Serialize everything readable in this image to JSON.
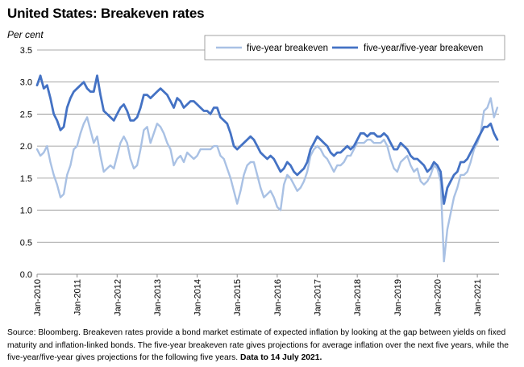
{
  "chart_data": {
    "type": "line",
    "title": "United States: Breakeven rates",
    "ylabel": "Per cent",
    "ylim": [
      0.0,
      3.5
    ],
    "yticks": [
      "0.0",
      "0.5",
      "1.0",
      "1.5",
      "2.0",
      "2.5",
      "3.0",
      "3.5"
    ],
    "xticks": [
      "Jan-2010",
      "Jan-2011",
      "Jan-2012",
      "Jan-2013",
      "Jan-2014",
      "Jan-2015",
      "Jan-2016",
      "Jan-2017",
      "Jan-2018",
      "Jan-2019",
      "Jan-2020",
      "Jan-2021"
    ],
    "xrange": [
      "2010-01",
      "2021-07"
    ],
    "grid": "horizontal",
    "legend_position": "top-right",
    "series": [
      {
        "name": "five-year breakeven",
        "color": "#a9c1e4",
        "points": [
          [
            "2010-01",
            1.95
          ],
          [
            "2010-02",
            1.85
          ],
          [
            "2010-03",
            1.9
          ],
          [
            "2010-04",
            2.0
          ],
          [
            "2010-05",
            1.75
          ],
          [
            "2010-06",
            1.55
          ],
          [
            "2010-07",
            1.4
          ],
          [
            "2010-08",
            1.2
          ],
          [
            "2010-09",
            1.25
          ],
          [
            "2010-10",
            1.55
          ],
          [
            "2010-11",
            1.7
          ],
          [
            "2010-12",
            1.95
          ],
          [
            "2011-01",
            2.0
          ],
          [
            "2011-02",
            2.2
          ],
          [
            "2011-03",
            2.35
          ],
          [
            "2011-04",
            2.45
          ],
          [
            "2011-05",
            2.25
          ],
          [
            "2011-06",
            2.05
          ],
          [
            "2011-07",
            2.15
          ],
          [
            "2011-08",
            1.85
          ],
          [
            "2011-09",
            1.6
          ],
          [
            "2011-10",
            1.65
          ],
          [
            "2011-11",
            1.7
          ],
          [
            "2011-12",
            1.65
          ],
          [
            "2012-01",
            1.85
          ],
          [
            "2012-02",
            2.05
          ],
          [
            "2012-03",
            2.15
          ],
          [
            "2012-04",
            2.05
          ],
          [
            "2012-05",
            1.8
          ],
          [
            "2012-06",
            1.65
          ],
          [
            "2012-07",
            1.7
          ],
          [
            "2012-08",
            1.95
          ],
          [
            "2012-09",
            2.25
          ],
          [
            "2012-10",
            2.3
          ],
          [
            "2012-11",
            2.05
          ],
          [
            "2012-12",
            2.2
          ],
          [
            "2013-01",
            2.35
          ],
          [
            "2013-02",
            2.3
          ],
          [
            "2013-03",
            2.2
          ],
          [
            "2013-04",
            2.05
          ],
          [
            "2013-05",
            1.95
          ],
          [
            "2013-06",
            1.7
          ],
          [
            "2013-07",
            1.8
          ],
          [
            "2013-08",
            1.85
          ],
          [
            "2013-09",
            1.75
          ],
          [
            "2013-10",
            1.9
          ],
          [
            "2013-11",
            1.85
          ],
          [
            "2013-12",
            1.8
          ],
          [
            "2014-01",
            1.85
          ],
          [
            "2014-02",
            1.95
          ],
          [
            "2014-03",
            1.95
          ],
          [
            "2014-04",
            1.95
          ],
          [
            "2014-05",
            1.95
          ],
          [
            "2014-06",
            2.0
          ],
          [
            "2014-07",
            2.0
          ],
          [
            "2014-08",
            1.85
          ],
          [
            "2014-09",
            1.8
          ],
          [
            "2014-10",
            1.65
          ],
          [
            "2014-11",
            1.5
          ],
          [
            "2014-12",
            1.3
          ],
          [
            "2015-01",
            1.1
          ],
          [
            "2015-02",
            1.3
          ],
          [
            "2015-03",
            1.55
          ],
          [
            "2015-04",
            1.7
          ],
          [
            "2015-05",
            1.75
          ],
          [
            "2015-06",
            1.75
          ],
          [
            "2015-07",
            1.55
          ],
          [
            "2015-08",
            1.35
          ],
          [
            "2015-09",
            1.2
          ],
          [
            "2015-10",
            1.25
          ],
          [
            "2015-11",
            1.3
          ],
          [
            "2015-12",
            1.2
          ],
          [
            "2016-01",
            1.05
          ],
          [
            "2016-02",
            1.0
          ],
          [
            "2016-03",
            1.4
          ],
          [
            "2016-04",
            1.55
          ],
          [
            "2016-05",
            1.5
          ],
          [
            "2016-06",
            1.4
          ],
          [
            "2016-07",
            1.3
          ],
          [
            "2016-08",
            1.35
          ],
          [
            "2016-09",
            1.45
          ],
          [
            "2016-10",
            1.6
          ],
          [
            "2016-11",
            1.85
          ],
          [
            "2016-12",
            1.95
          ],
          [
            "2017-01",
            2.0
          ],
          [
            "2017-02",
            1.95
          ],
          [
            "2017-03",
            1.85
          ],
          [
            "2017-04",
            1.8
          ],
          [
            "2017-05",
            1.7
          ],
          [
            "2017-06",
            1.6
          ],
          [
            "2017-07",
            1.7
          ],
          [
            "2017-08",
            1.7
          ],
          [
            "2017-09",
            1.75
          ],
          [
            "2017-10",
            1.85
          ],
          [
            "2017-11",
            1.85
          ],
          [
            "2017-12",
            1.95
          ],
          [
            "2018-01",
            2.05
          ],
          [
            "2018-02",
            2.05
          ],
          [
            "2018-03",
            2.05
          ],
          [
            "2018-04",
            2.1
          ],
          [
            "2018-05",
            2.1
          ],
          [
            "2018-06",
            2.05
          ],
          [
            "2018-07",
            2.05
          ],
          [
            "2018-08",
            2.05
          ],
          [
            "2018-09",
            2.1
          ],
          [
            "2018-10",
            2.0
          ],
          [
            "2018-11",
            1.8
          ],
          [
            "2018-12",
            1.65
          ],
          [
            "2019-01",
            1.6
          ],
          [
            "2019-02",
            1.75
          ],
          [
            "2019-03",
            1.8
          ],
          [
            "2019-04",
            1.85
          ],
          [
            "2019-05",
            1.7
          ],
          [
            "2019-06",
            1.6
          ],
          [
            "2019-07",
            1.65
          ],
          [
            "2019-08",
            1.45
          ],
          [
            "2019-09",
            1.4
          ],
          [
            "2019-10",
            1.45
          ],
          [
            "2019-11",
            1.55
          ],
          [
            "2019-12",
            1.7
          ],
          [
            "2020-01",
            1.65
          ],
          [
            "2020-02",
            1.45
          ],
          [
            "2020-03",
            0.2
          ],
          [
            "2020-04",
            0.7
          ],
          [
            "2020-05",
            0.95
          ],
          [
            "2020-06",
            1.2
          ],
          [
            "2020-07",
            1.35
          ],
          [
            "2020-08",
            1.55
          ],
          [
            "2020-09",
            1.55
          ],
          [
            "2020-10",
            1.6
          ],
          [
            "2020-11",
            1.75
          ],
          [
            "2020-12",
            1.95
          ],
          [
            "2021-01",
            2.05
          ],
          [
            "2021-02",
            2.2
          ],
          [
            "2021-03",
            2.55
          ],
          [
            "2021-04",
            2.6
          ],
          [
            "2021-05",
            2.75
          ],
          [
            "2021-06",
            2.45
          ],
          [
            "2021-07",
            2.6
          ]
        ]
      },
      {
        "name": "five-year/five-year breakeven",
        "color": "#4472c4",
        "points": [
          [
            "2010-01",
            2.95
          ],
          [
            "2010-02",
            3.1
          ],
          [
            "2010-03",
            2.9
          ],
          [
            "2010-04",
            2.95
          ],
          [
            "2010-05",
            2.75
          ],
          [
            "2010-06",
            2.5
          ],
          [
            "2010-07",
            2.4
          ],
          [
            "2010-08",
            2.25
          ],
          [
            "2010-09",
            2.3
          ],
          [
            "2010-10",
            2.6
          ],
          [
            "2010-11",
            2.75
          ],
          [
            "2010-12",
            2.85
          ],
          [
            "2011-01",
            2.9
          ],
          [
            "2011-02",
            2.95
          ],
          [
            "2011-03",
            3.0
          ],
          [
            "2011-04",
            2.9
          ],
          [
            "2011-05",
            2.85
          ],
          [
            "2011-06",
            2.85
          ],
          [
            "2011-07",
            3.1
          ],
          [
            "2011-08",
            2.8
          ],
          [
            "2011-09",
            2.55
          ],
          [
            "2011-10",
            2.5
          ],
          [
            "2011-11",
            2.45
          ],
          [
            "2011-12",
            2.4
          ],
          [
            "2012-01",
            2.5
          ],
          [
            "2012-02",
            2.6
          ],
          [
            "2012-03",
            2.65
          ],
          [
            "2012-04",
            2.55
          ],
          [
            "2012-05",
            2.4
          ],
          [
            "2012-06",
            2.4
          ],
          [
            "2012-07",
            2.45
          ],
          [
            "2012-08",
            2.6
          ],
          [
            "2012-09",
            2.8
          ],
          [
            "2012-10",
            2.8
          ],
          [
            "2012-11",
            2.75
          ],
          [
            "2012-12",
            2.8
          ],
          [
            "2013-01",
            2.85
          ],
          [
            "2013-02",
            2.9
          ],
          [
            "2013-03",
            2.85
          ],
          [
            "2013-04",
            2.8
          ],
          [
            "2013-05",
            2.7
          ],
          [
            "2013-06",
            2.6
          ],
          [
            "2013-07",
            2.75
          ],
          [
            "2013-08",
            2.7
          ],
          [
            "2013-09",
            2.6
          ],
          [
            "2013-10",
            2.65
          ],
          [
            "2013-11",
            2.7
          ],
          [
            "2013-12",
            2.7
          ],
          [
            "2014-01",
            2.65
          ],
          [
            "2014-02",
            2.6
          ],
          [
            "2014-03",
            2.55
          ],
          [
            "2014-04",
            2.55
          ],
          [
            "2014-05",
            2.5
          ],
          [
            "2014-06",
            2.6
          ],
          [
            "2014-07",
            2.6
          ],
          [
            "2014-08",
            2.45
          ],
          [
            "2014-09",
            2.4
          ],
          [
            "2014-10",
            2.35
          ],
          [
            "2014-11",
            2.2
          ],
          [
            "2014-12",
            2.0
          ],
          [
            "2015-01",
            1.95
          ],
          [
            "2015-02",
            2.0
          ],
          [
            "2015-03",
            2.05
          ],
          [
            "2015-04",
            2.1
          ],
          [
            "2015-05",
            2.15
          ],
          [
            "2015-06",
            2.1
          ],
          [
            "2015-07",
            2.0
          ],
          [
            "2015-08",
            1.9
          ],
          [
            "2015-09",
            1.85
          ],
          [
            "2015-10",
            1.8
          ],
          [
            "2015-11",
            1.85
          ],
          [
            "2015-12",
            1.8
          ],
          [
            "2016-01",
            1.7
          ],
          [
            "2016-02",
            1.6
          ],
          [
            "2016-03",
            1.65
          ],
          [
            "2016-04",
            1.75
          ],
          [
            "2016-05",
            1.7
          ],
          [
            "2016-06",
            1.6
          ],
          [
            "2016-07",
            1.55
          ],
          [
            "2016-08",
            1.6
          ],
          [
            "2016-09",
            1.65
          ],
          [
            "2016-10",
            1.75
          ],
          [
            "2016-11",
            1.95
          ],
          [
            "2016-12",
            2.05
          ],
          [
            "2017-01",
            2.15
          ],
          [
            "2017-02",
            2.1
          ],
          [
            "2017-03",
            2.05
          ],
          [
            "2017-04",
            2.0
          ],
          [
            "2017-05",
            1.9
          ],
          [
            "2017-06",
            1.85
          ],
          [
            "2017-07",
            1.9
          ],
          [
            "2017-08",
            1.9
          ],
          [
            "2017-09",
            1.95
          ],
          [
            "2017-10",
            2.0
          ],
          [
            "2017-11",
            1.95
          ],
          [
            "2017-12",
            2.0
          ],
          [
            "2018-01",
            2.1
          ],
          [
            "2018-02",
            2.2
          ],
          [
            "2018-03",
            2.2
          ],
          [
            "2018-04",
            2.15
          ],
          [
            "2018-05",
            2.2
          ],
          [
            "2018-06",
            2.2
          ],
          [
            "2018-07",
            2.15
          ],
          [
            "2018-08",
            2.15
          ],
          [
            "2018-09",
            2.2
          ],
          [
            "2018-10",
            2.15
          ],
          [
            "2018-11",
            2.05
          ],
          [
            "2018-12",
            1.95
          ],
          [
            "2019-01",
            1.95
          ],
          [
            "2019-02",
            2.05
          ],
          [
            "2019-03",
            2.0
          ],
          [
            "2019-04",
            1.95
          ],
          [
            "2019-05",
            1.85
          ],
          [
            "2019-06",
            1.8
          ],
          [
            "2019-07",
            1.8
          ],
          [
            "2019-08",
            1.75
          ],
          [
            "2019-09",
            1.7
          ],
          [
            "2019-10",
            1.6
          ],
          [
            "2019-11",
            1.65
          ],
          [
            "2019-12",
            1.75
          ],
          [
            "2020-01",
            1.7
          ],
          [
            "2020-02",
            1.6
          ],
          [
            "2020-03",
            1.1
          ],
          [
            "2020-04",
            1.35
          ],
          [
            "2020-05",
            1.45
          ],
          [
            "2020-06",
            1.55
          ],
          [
            "2020-07",
            1.6
          ],
          [
            "2020-08",
            1.75
          ],
          [
            "2020-09",
            1.75
          ],
          [
            "2020-10",
            1.8
          ],
          [
            "2020-11",
            1.9
          ],
          [
            "2020-12",
            2.0
          ],
          [
            "2021-01",
            2.1
          ],
          [
            "2021-02",
            2.2
          ],
          [
            "2021-03",
            2.3
          ],
          [
            "2021-04",
            2.3
          ],
          [
            "2021-05",
            2.35
          ],
          [
            "2021-06",
            2.2
          ],
          [
            "2021-07",
            2.1
          ]
        ]
      }
    ]
  },
  "source_text": "Source: Bloomberg.  Breakeven rates provide a bond market estimate of expected inflation by looking at the gap between yields on fixed maturity and inflation-linked bonds.  The five-year breakeven rate gives projections for average inflation over the next five years, while the five-year/five-year gives projections for the following five years.",
  "source_date": "Data to 14 July 2021."
}
